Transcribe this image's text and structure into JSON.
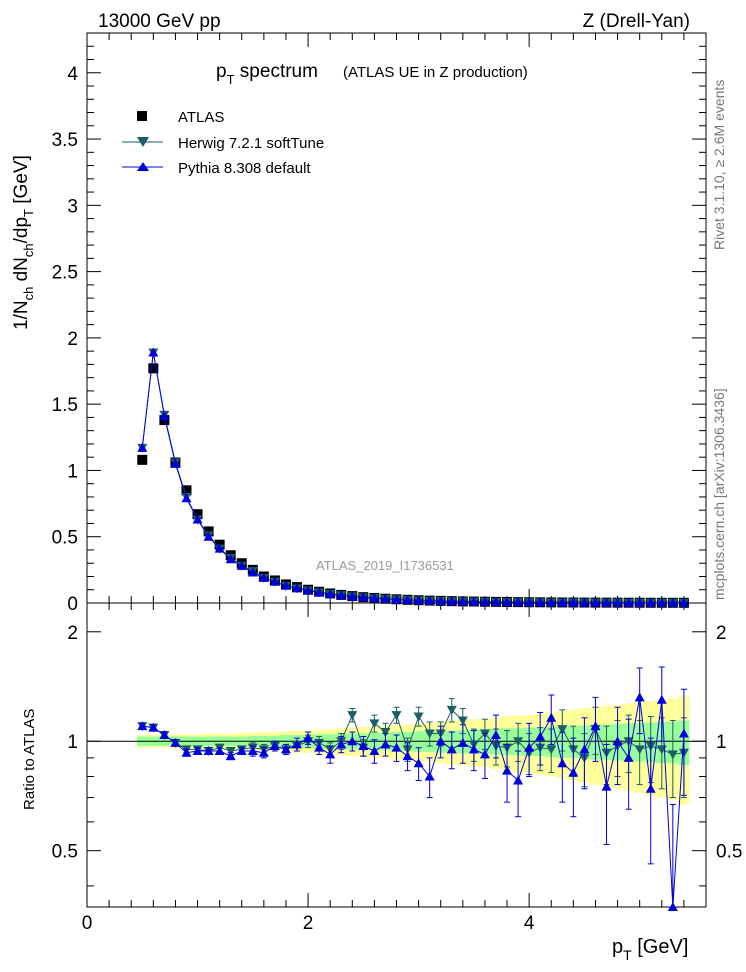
{
  "header": {
    "left": "13000 GeV pp",
    "right": "Z (Drell-Yan)"
  },
  "title": {
    "main": "p",
    "main_sub": "T",
    "main_rest": " spectrum",
    "subtitle": "(ATLAS UE in Z production)"
  },
  "side_labels": {
    "rivet": "Rivet 3.1.10, ≥ 2.6M events",
    "mcplots": "mcplots.cern.ch [arXiv:1306.3436]"
  },
  "watermark": "ATLAS_2019_I1736531",
  "axes": {
    "top_ylabel": "1/N_ch dN_ch/dp_T [GeV]",
    "bottom_ylabel": "Ratio to ATLAS",
    "xlabel": "p_T [GeV]",
    "top_yticks": [
      "0",
      "0.5",
      "1",
      "1.5",
      "2",
      "2.5",
      "3",
      "3.5",
      "4"
    ],
    "bottom_yticks": [
      "0.5",
      "1",
      "2"
    ],
    "xticks": [
      "0",
      "2",
      "4"
    ]
  },
  "legend": [
    {
      "label": "ATLAS",
      "color": "#000000",
      "marker": "square"
    },
    {
      "label": "Herwig 7.2.1 softTune",
      "color": "#1b5e66",
      "marker": "triangle-down"
    },
    {
      "label": "Pythia 8.308 default",
      "color": "#0000dd",
      "marker": "triangle-up"
    }
  ],
  "chart_data": {
    "type": "scatter",
    "xlim": [
      0,
      5.6
    ],
    "top_ylim": [
      0,
      4.3
    ],
    "ratio_ylim": [
      0.35,
      2.4
    ],
    "ratio_log_scale": true,
    "x": [
      0.5,
      0.6,
      0.7,
      0.8,
      0.9,
      1.0,
      1.1,
      1.2,
      1.3,
      1.4,
      1.5,
      1.6,
      1.7,
      1.8,
      1.9,
      2.0,
      2.1,
      2.2,
      2.3,
      2.4,
      2.5,
      2.6,
      2.7,
      2.8,
      2.9,
      3.0,
      3.1,
      3.2,
      3.3,
      3.4,
      3.5,
      3.6,
      3.7,
      3.8,
      3.9,
      4.0,
      4.1,
      4.2,
      4.3,
      4.4,
      4.5,
      4.6,
      4.7,
      4.8,
      4.9,
      5.0,
      5.1,
      5.2,
      5.3,
      5.4
    ],
    "series": [
      {
        "name": "ATLAS",
        "values": [
          1.08,
          1.77,
          1.38,
          1.06,
          0.85,
          0.67,
          0.54,
          0.44,
          0.36,
          0.3,
          0.25,
          0.2,
          0.17,
          0.14,
          0.12,
          0.1,
          0.085,
          0.072,
          0.061,
          0.052,
          0.044,
          0.038,
          0.032,
          0.028,
          0.024,
          0.021,
          0.018,
          0.016,
          0.014,
          0.012,
          0.011,
          0.0095,
          0.0084,
          0.0074,
          0.0066,
          0.0058,
          0.0052,
          0.0046,
          0.0041,
          0.0037,
          0.0033,
          0.003,
          0.0027,
          0.0024,
          0.0022,
          0.002,
          0.0018,
          0.0016,
          0.0015,
          0.0014
        ]
      },
      {
        "name": "Herwig 7.2.1 softTune",
        "values": [
          1.17,
          1.89,
          1.42,
          1.06,
          0.8,
          0.63,
          0.51,
          0.41,
          0.34,
          0.28,
          0.24,
          0.19,
          0.16,
          0.13,
          0.11,
          0.095,
          0.08,
          0.068,
          0.058,
          0.05,
          0.042,
          0.036,
          0.031,
          0.027,
          0.023,
          0.02,
          0.017,
          0.015,
          0.013,
          0.012,
          0.01,
          0.009,
          0.008,
          0.007,
          0.0062,
          0.0055,
          0.005,
          0.0044,
          0.0039,
          0.0035,
          0.0031,
          0.0028,
          0.0025,
          0.0023,
          0.0021,
          0.0019,
          0.0017,
          0.0015,
          0.0014,
          0.0013
        ]
      },
      {
        "name": "Pythia 8.308 default",
        "values": [
          1.17,
          1.89,
          1.41,
          1.05,
          0.79,
          0.63,
          0.5,
          0.41,
          0.33,
          0.28,
          0.23,
          0.19,
          0.16,
          0.13,
          0.11,
          0.094,
          0.079,
          0.067,
          0.057,
          0.049,
          0.042,
          0.036,
          0.031,
          0.026,
          0.023,
          0.02,
          0.017,
          0.015,
          0.013,
          0.011,
          0.0098,
          0.0087,
          0.0077,
          0.0068,
          0.006,
          0.0054,
          0.0048,
          0.0043,
          0.0038,
          0.0034,
          0.003,
          0.0027,
          0.0024,
          0.0022,
          0.002,
          0.0018,
          0.0016,
          0.0015,
          0.0013,
          0.0012
        ]
      }
    ],
    "ratio_series": [
      {
        "name": "Herwig 7.2.1 softTune",
        "values": [
          1.1,
          1.09,
          1.04,
          0.99,
          0.95,
          0.95,
          0.94,
          0.96,
          0.94,
          0.95,
          0.96,
          0.95,
          0.97,
          0.95,
          0.97,
          1.0,
          0.99,
          0.95,
          1.0,
          1.18,
          0.96,
          1.12,
          1.06,
          1.18,
          0.95,
          1.17,
          1.05,
          1.05,
          1.22,
          1.14,
          0.98,
          1.05,
          0.97,
          0.96,
          1.0,
          0.93,
          0.96,
          0.95,
          1.08,
          0.95,
          0.9,
          1.08,
          0.93,
          0.97,
          1.0,
          0.95,
          0.97,
          0.95,
          0.92,
          0.93
        ],
        "errors": [
          0.02,
          0.02,
          0.02,
          0.02,
          0.02,
          0.02,
          0.02,
          0.02,
          0.02,
          0.02,
          0.03,
          0.03,
          0.03,
          0.03,
          0.03,
          0.04,
          0.04,
          0.04,
          0.05,
          0.05,
          0.05,
          0.06,
          0.06,
          0.06,
          0.07,
          0.07,
          0.08,
          0.08,
          0.09,
          0.09,
          0.1,
          0.1,
          0.11,
          0.11,
          0.12,
          0.12,
          0.13,
          0.13,
          0.14,
          0.15,
          0.15,
          0.16,
          0.17,
          0.17,
          0.18,
          0.19,
          0.2,
          0.21,
          0.22,
          0.23
        ]
      },
      {
        "name": "Pythia 8.308 default",
        "values": [
          1.1,
          1.09,
          1.04,
          0.99,
          0.93,
          0.94,
          0.94,
          0.94,
          0.91,
          0.94,
          0.94,
          0.93,
          0.97,
          0.95,
          0.98,
          1.02,
          0.96,
          0.92,
          0.98,
          1.0,
          0.97,
          0.94,
          0.98,
          0.96,
          0.91,
          0.87,
          0.8,
          1.0,
          0.95,
          0.99,
          0.95,
          0.92,
          1.04,
          0.83,
          0.78,
          0.96,
          1.03,
          1.16,
          0.87,
          0.82,
          0.95,
          1.1,
          0.75,
          1.0,
          0.9,
          1.32,
          0.74,
          1.3,
          0.35,
          1.05
        ],
        "errors": [
          0.02,
          0.02,
          0.02,
          0.02,
          0.02,
          0.02,
          0.02,
          0.02,
          0.02,
          0.02,
          0.03,
          0.03,
          0.03,
          0.03,
          0.04,
          0.04,
          0.04,
          0.05,
          0.05,
          0.06,
          0.06,
          0.07,
          0.07,
          0.08,
          0.08,
          0.09,
          0.1,
          0.1,
          0.11,
          0.12,
          0.12,
          0.13,
          0.14,
          0.15,
          0.16,
          0.16,
          0.17,
          0.18,
          0.19,
          0.2,
          0.21,
          0.22,
          0.23,
          0.24,
          0.25,
          0.27,
          0.28,
          0.3,
          0.32,
          0.34
        ]
      }
    ],
    "bands": {
      "green_halfwidths": [
        0.03,
        0.03,
        0.03,
        0.03,
        0.03,
        0.03,
        0.03,
        0.03,
        0.03,
        0.03,
        0.035,
        0.035,
        0.035,
        0.04,
        0.04,
        0.04,
        0.045,
        0.045,
        0.05,
        0.05,
        0.05,
        0.055,
        0.055,
        0.06,
        0.06,
        0.065,
        0.065,
        0.07,
        0.07,
        0.075,
        0.075,
        0.08,
        0.08,
        0.085,
        0.085,
        0.09,
        0.09,
        0.095,
        0.1,
        0.1,
        0.105,
        0.11,
        0.11,
        0.115,
        0.12,
        0.12,
        0.125,
        0.13,
        0.13,
        0.14
      ],
      "yellow_halfwidths": [
        0.04,
        0.04,
        0.04,
        0.045,
        0.045,
        0.045,
        0.05,
        0.05,
        0.05,
        0.055,
        0.055,
        0.06,
        0.06,
        0.065,
        0.07,
        0.07,
        0.075,
        0.08,
        0.085,
        0.09,
        0.095,
        0.1,
        0.1,
        0.11,
        0.11,
        0.12,
        0.12,
        0.13,
        0.14,
        0.14,
        0.15,
        0.15,
        0.16,
        0.17,
        0.18,
        0.18,
        0.19,
        0.2,
        0.21,
        0.22,
        0.23,
        0.24,
        0.25,
        0.26,
        0.27,
        0.28,
        0.29,
        0.3,
        0.31,
        0.33
      ]
    }
  }
}
